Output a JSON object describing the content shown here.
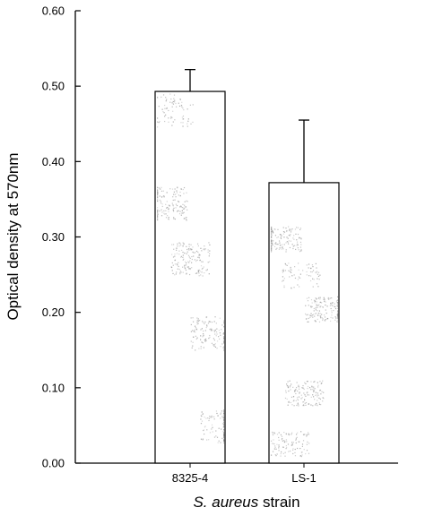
{
  "chart_data": {
    "type": "bar",
    "title": "",
    "xlabel_italic": "S. aureus",
    "xlabel_rest": " strain",
    "ylabel": "Optical density at 570nm",
    "categories": [
      "8325-4",
      "LS-1"
    ],
    "series": [
      {
        "values": [
          0.493,
          0.372
        ],
        "error_plus": [
          0.029,
          0.083
        ]
      }
    ],
    "ylim": [
      0,
      0.6
    ],
    "yticks": [
      "0.00",
      "0.10",
      "0.20",
      "0.30",
      "0.40",
      "0.50",
      "0.60"
    ],
    "grid": false,
    "legend": "none",
    "bar_fill": "#ffffff",
    "bar_stroke": "#000000",
    "speckle_color": "#9a9a9a"
  }
}
